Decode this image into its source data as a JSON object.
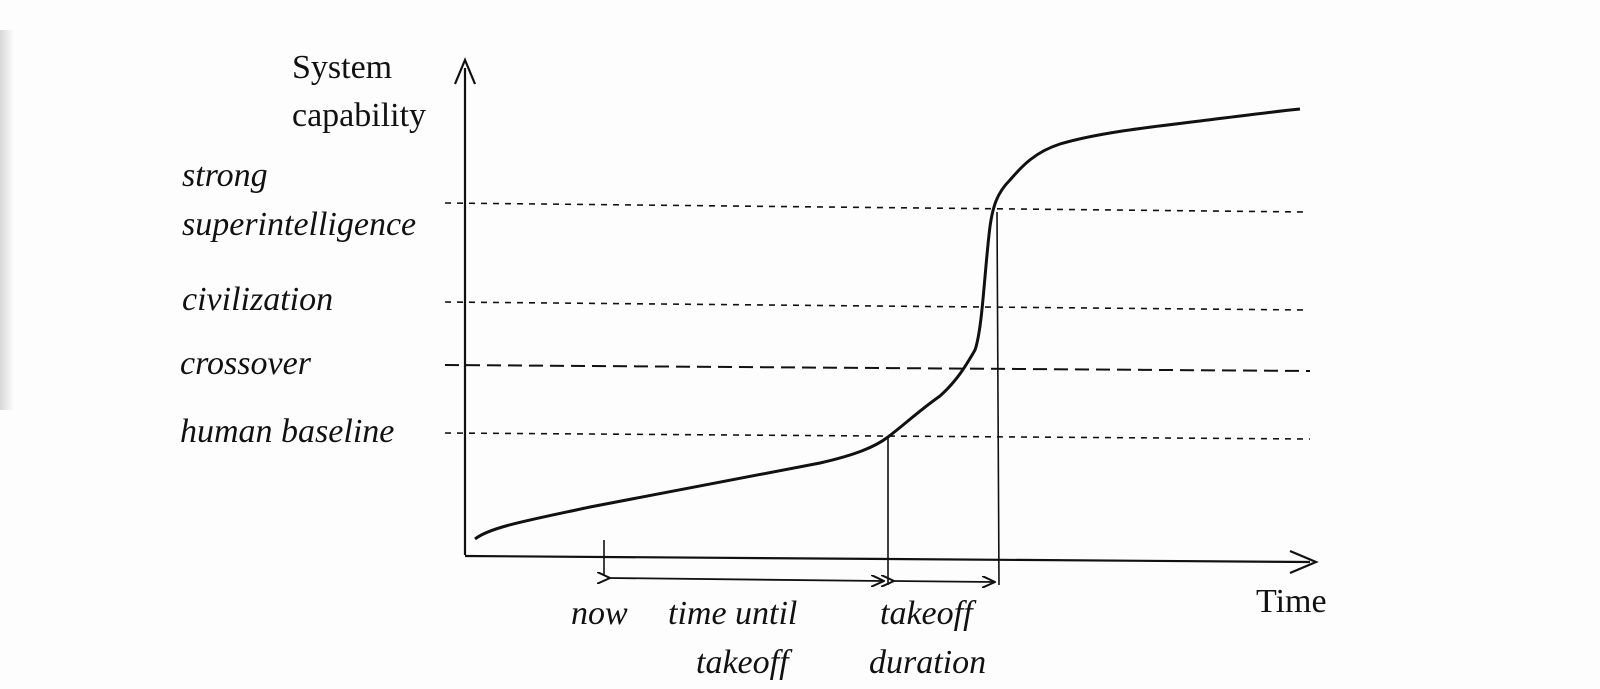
{
  "axes": {
    "y_title": [
      "System",
      "capability"
    ],
    "x_title": "Time"
  },
  "levels": [
    {
      "id": "strong-superintelligence",
      "label": [
        "strong",
        "superintelligence"
      ],
      "style": "dotted"
    },
    {
      "id": "civilization",
      "label": [
        "civilization"
      ],
      "style": "dotted"
    },
    {
      "id": "crossover",
      "label": [
        "crossover"
      ],
      "style": "dashed"
    },
    {
      "id": "human-baseline",
      "label": [
        "human baseline"
      ],
      "style": "dotted"
    }
  ],
  "annotations": {
    "now": "now",
    "time_until_takeoff": [
      "time until",
      "takeoff"
    ],
    "takeoff_duration": [
      "takeoff",
      "duration"
    ]
  },
  "colors": {
    "ink": "#111111",
    "paper": "#fdfdfd"
  }
}
